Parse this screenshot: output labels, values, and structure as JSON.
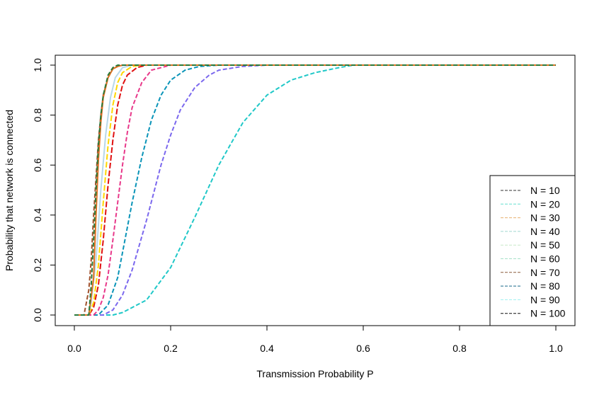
{
  "chart_data": {
    "type": "line",
    "title": "",
    "xlabel": "Transmission Probability P",
    "ylabel": "Probability that network is connected",
    "xlim": [
      0,
      1
    ],
    "ylim": [
      0,
      1
    ],
    "x_ticks": [
      "0.0",
      "0.2",
      "0.4",
      "0.6",
      "0.8",
      "1.0"
    ],
    "y_ticks": [
      "0.0",
      "0.2",
      "0.4",
      "0.6",
      "0.8",
      "1.0"
    ],
    "grid": false,
    "legend_position": "bottom-right",
    "legend": [
      {
        "label": "N = 10",
        "color": "#333333"
      },
      {
        "label": "N = 20",
        "color": "#66e0d0"
      },
      {
        "label": "N = 30",
        "color": "#e8b070"
      },
      {
        "label": "N = 40",
        "color": "#a0d8d0"
      },
      {
        "label": "N = 50",
        "color": "#c8e8c8"
      },
      {
        "label": "N = 60",
        "color": "#a8e0c8"
      },
      {
        "label": "N = 70",
        "color": "#8b5a3c"
      },
      {
        "label": "N = 80",
        "color": "#1a6a8a"
      },
      {
        "label": "N = 90",
        "color": "#9ef0f0"
      },
      {
        "label": "N = 100",
        "color": "#111111"
      }
    ],
    "series": [
      {
        "color": "#20c8c8",
        "dash": "6,3",
        "x": [
          0.0,
          0.08,
          0.1,
          0.15,
          0.2,
          0.25,
          0.3,
          0.35,
          0.4,
          0.45,
          0.5,
          0.55,
          0.58,
          1.0
        ],
        "y": [
          0.0,
          0.0,
          0.01,
          0.06,
          0.19,
          0.39,
          0.6,
          0.77,
          0.88,
          0.94,
          0.97,
          0.99,
          1.0,
          1.0
        ]
      },
      {
        "color": "#7b68ee",
        "dash": "6,3",
        "x": [
          0.0,
          0.06,
          0.08,
          0.1,
          0.12,
          0.15,
          0.18,
          0.2,
          0.22,
          0.25,
          0.28,
          0.3,
          0.35,
          0.4,
          1.0
        ],
        "y": [
          0.0,
          0.0,
          0.02,
          0.08,
          0.18,
          0.38,
          0.6,
          0.72,
          0.82,
          0.91,
          0.96,
          0.98,
          0.995,
          1.0,
          1.0
        ]
      },
      {
        "color": "#0a94b8",
        "dash": "6,3",
        "x": [
          0.0,
          0.05,
          0.07,
          0.09,
          0.1,
          0.12,
          0.14,
          0.16,
          0.18,
          0.2,
          0.23,
          0.26,
          0.3,
          1.0
        ],
        "y": [
          0.0,
          0.0,
          0.04,
          0.15,
          0.25,
          0.45,
          0.63,
          0.78,
          0.88,
          0.94,
          0.98,
          0.995,
          1.0,
          1.0
        ]
      },
      {
        "color": "#e8388a",
        "dash": "6,3",
        "x": [
          0.0,
          0.04,
          0.05,
          0.06,
          0.07,
          0.08,
          0.09,
          0.1,
          0.11,
          0.12,
          0.14,
          0.16,
          0.2,
          1.0
        ],
        "y": [
          0.0,
          0.0,
          0.02,
          0.07,
          0.16,
          0.3,
          0.45,
          0.6,
          0.73,
          0.83,
          0.93,
          0.98,
          1.0,
          1.0
        ]
      },
      {
        "color": "#e01010",
        "dash": "8,3",
        "x": [
          0.0,
          0.03,
          0.04,
          0.05,
          0.06,
          0.07,
          0.08,
          0.09,
          0.1,
          0.11,
          0.13,
          0.15,
          1.0
        ],
        "y": [
          0.0,
          0.0,
          0.03,
          0.12,
          0.3,
          0.52,
          0.7,
          0.84,
          0.92,
          0.96,
          0.99,
          1.0,
          1.0
        ]
      },
      {
        "color": "#ffd700",
        "dash": "8,3",
        "x": [
          0.0,
          0.03,
          0.04,
          0.05,
          0.06,
          0.07,
          0.08,
          0.09,
          0.1,
          0.12,
          0.14,
          1.0
        ],
        "y": [
          0.0,
          0.0,
          0.05,
          0.2,
          0.45,
          0.68,
          0.84,
          0.93,
          0.97,
          0.995,
          1.0,
          1.0
        ]
      },
      {
        "color": "#b8d8e8",
        "dash": "",
        "x": [
          0.0,
          0.03,
          0.035,
          0.045,
          0.055,
          0.065,
          0.075,
          0.085,
          0.1,
          0.12,
          1.0
        ],
        "y": [
          0.0,
          0.0,
          0.05,
          0.22,
          0.5,
          0.72,
          0.87,
          0.95,
          0.99,
          1.0,
          1.0
        ]
      },
      {
        "color": "#a0522d",
        "dash": "6,3",
        "x": [
          0.0,
          0.02,
          0.03,
          0.035,
          0.04,
          0.045,
          0.05,
          0.055,
          0.06,
          0.07,
          0.08,
          0.09,
          0.1,
          1.0
        ],
        "y": [
          0.0,
          0.0,
          0.1,
          0.22,
          0.4,
          0.55,
          0.7,
          0.8,
          0.88,
          0.95,
          0.985,
          0.995,
          1.0,
          1.0
        ]
      },
      {
        "color": "#e07020",
        "dash": "",
        "x": [
          0.0,
          0.03,
          0.04,
          0.045,
          0.05,
          0.055,
          0.06,
          0.07,
          0.08,
          0.09,
          0.1,
          1.0
        ],
        "y": [
          0.0,
          0.0,
          0.15,
          0.4,
          0.62,
          0.77,
          0.87,
          0.95,
          0.985,
          0.995,
          1.0,
          1.0
        ]
      },
      {
        "color": "#2a7a3a",
        "dash": "6,3",
        "x": [
          0.0,
          0.03,
          0.035,
          0.04,
          0.045,
          0.05,
          0.055,
          0.06,
          0.07,
          0.08,
          0.09,
          1.0
        ],
        "y": [
          0.0,
          0.0,
          0.12,
          0.3,
          0.5,
          0.68,
          0.8,
          0.88,
          0.96,
          0.99,
          1.0,
          1.0
        ]
      }
    ]
  }
}
